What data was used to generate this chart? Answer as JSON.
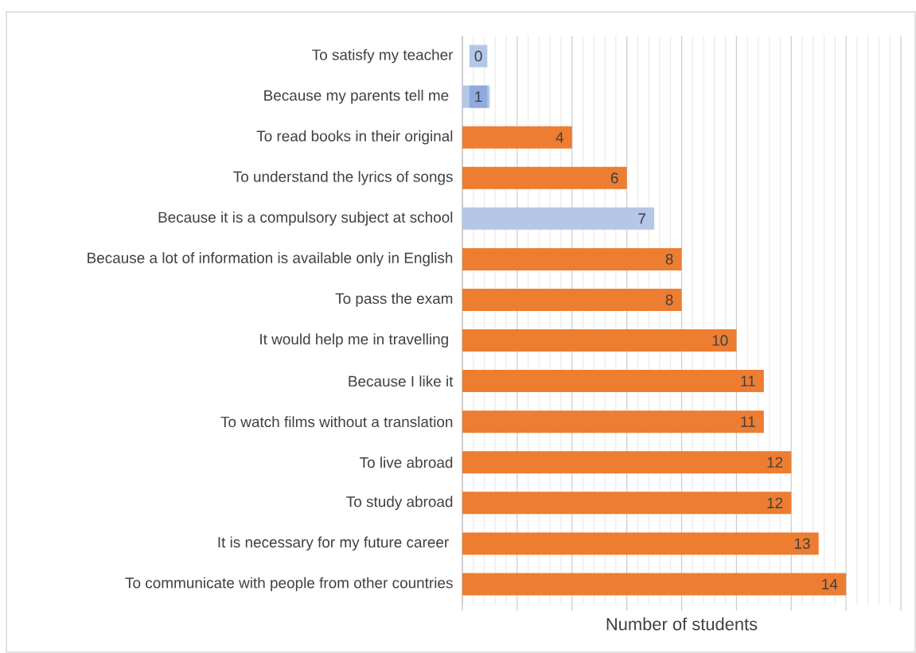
{
  "chart_data": {
    "type": "bar",
    "orientation": "horizontal",
    "xlabel": "Number of students",
    "categories": [
      "To satisfy my teacher",
      "Because my parents tell me ",
      "To read books in their original",
      "To understand the lyrics of songs",
      "Because it is a compulsory subject at school",
      "Because a lot of information is available only in English",
      "To pass the exam",
      "It would help me in travelling ",
      "Because I like it",
      "To watch films without a translation",
      "To live abroad",
      "To study abroad",
      "It is necessary for my future career ",
      "To communicate with people from other countries"
    ],
    "values": [
      0,
      1,
      4,
      6,
      7,
      8,
      8,
      10,
      11,
      11,
      12,
      12,
      13,
      14
    ],
    "colors": [
      "#b4c7e7",
      "#b4c7e7",
      "#ed7d31",
      "#ed7d31",
      "#b4c7e7",
      "#ed7d31",
      "#ed7d31",
      "#ed7d31",
      "#ed7d31",
      "#ed7d31",
      "#ed7d31",
      "#ed7d31",
      "#ed7d31",
      "#ed7d31"
    ],
    "xlim": [
      0,
      16
    ],
    "xticks": [
      {
        "value": 0,
        "label": null
      },
      {
        "value": 2,
        "label": null
      },
      {
        "value": 4,
        "label": null
      },
      {
        "value": 6,
        "label": null
      },
      {
        "value": 8,
        "label": null
      },
      {
        "value": 10,
        "label": null
      },
      {
        "value": 12,
        "label": null
      },
      {
        "value": 14,
        "label": null
      },
      {
        "value": 16,
        "label": null
      }
    ],
    "grid": "x",
    "data_labels": true
  }
}
